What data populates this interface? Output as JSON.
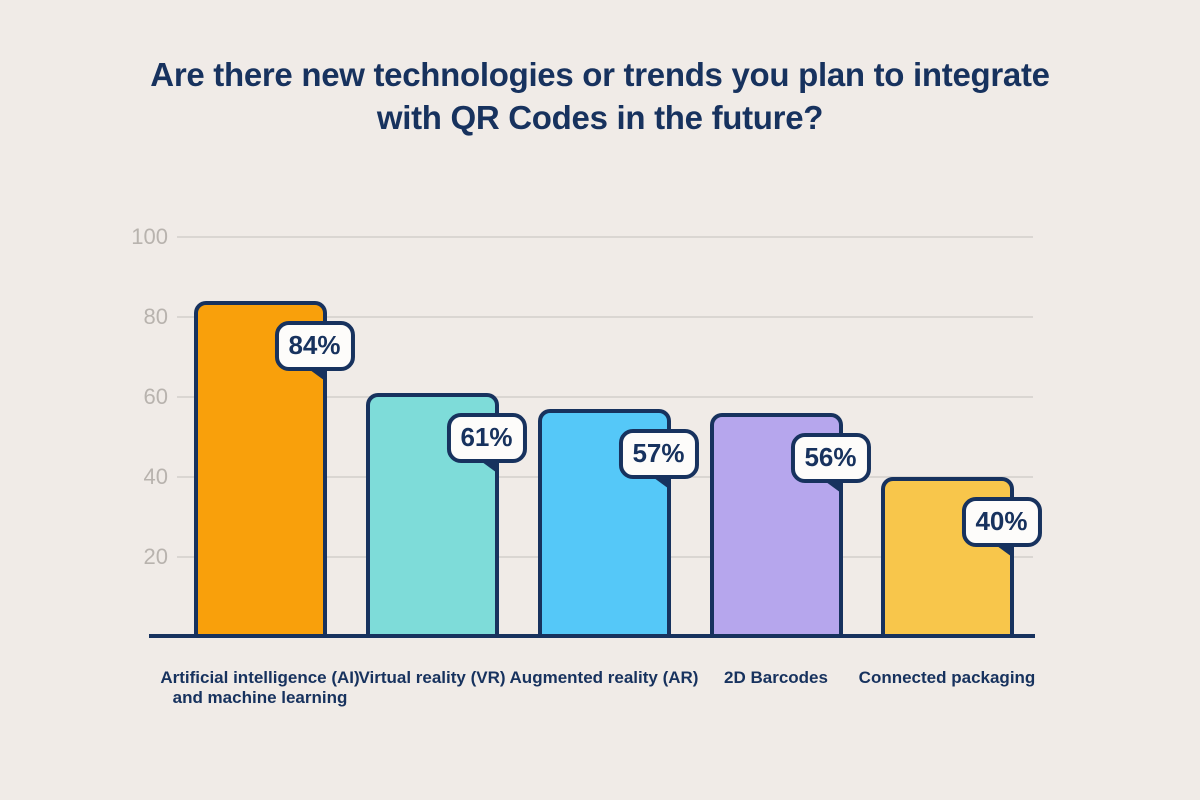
{
  "title": {
    "line1": "Are there new technologies or trends you plan to integrate",
    "line2": "with QR Codes in the future?"
  },
  "colors": {
    "background": "#F0EBE7",
    "ink": "#17325E",
    "grid": "#DAD6D2",
    "tick_label": "#B8B3AE",
    "callout_bg": "#FDFCFA"
  },
  "chart_data": {
    "type": "bar",
    "title": "Are there new technologies or trends you plan to integrate with QR Codes in the future?",
    "categories": [
      "Artificial intelligence (AI) and machine learning",
      "Virtual reality (VR)",
      "Augmented reality (AR)",
      "2D Barcodes",
      "Connected packaging"
    ],
    "category_lines": [
      [
        "Artificial intelligence (AI)",
        "and machine learning"
      ],
      [
        "Virtual reality (VR)"
      ],
      [
        "Augmented reality (AR)"
      ],
      [
        "2D Barcodes"
      ],
      [
        "Connected packaging"
      ]
    ],
    "values": [
      84,
      61,
      57,
      56,
      40
    ],
    "value_labels": [
      "84%",
      "61%",
      "57%",
      "56%",
      "40%"
    ],
    "bar_colors": [
      "#F9A00B",
      "#7EDCD9",
      "#55C8F8",
      "#B6A6ED",
      "#F8C64B"
    ],
    "xlabel": "",
    "ylabel": "",
    "ylim": [
      0,
      100
    ],
    "yticks": [
      20,
      40,
      60,
      80,
      100
    ],
    "grid": true,
    "legend": "none"
  }
}
